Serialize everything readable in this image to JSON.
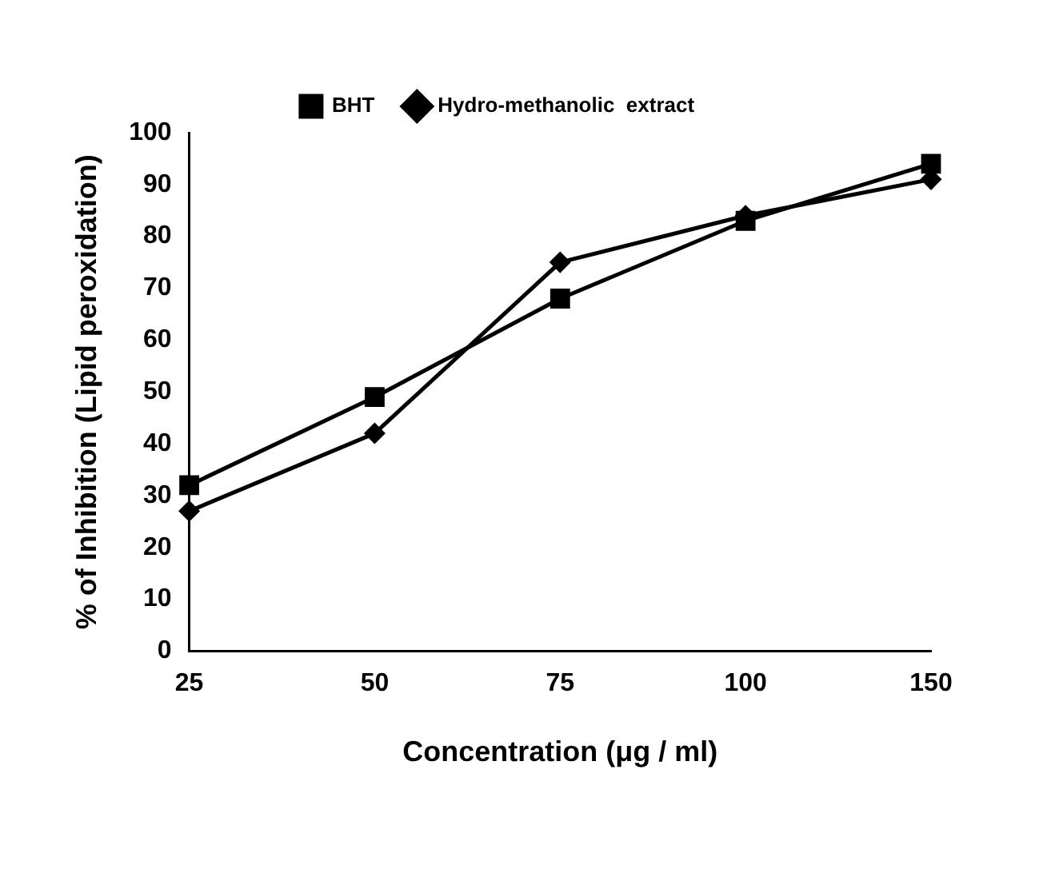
{
  "chart_data": {
    "type": "line",
    "xlabel": "Concentration (μg / ml)",
    "ylabel": "% of Inhibition (Lipid peroxidation)",
    "categories": [
      "25",
      "50",
      "75",
      "100",
      "150"
    ],
    "series": [
      {
        "name": "Hydro-methanolic  extract",
        "color": "#000000",
        "marker": "diamond",
        "values": [
          27,
          42,
          75,
          84,
          91
        ]
      },
      {
        "name": "BHT",
        "color": "#000000",
        "marker": "square",
        "values": [
          32,
          49,
          68,
          83,
          94
        ]
      }
    ],
    "ylim": [
      0,
      100
    ],
    "yticks": [
      0,
      10,
      20,
      30,
      40,
      50,
      60,
      70,
      80,
      90,
      100
    ],
    "grid": false,
    "legend": "top",
    "line_style": "solid"
  }
}
